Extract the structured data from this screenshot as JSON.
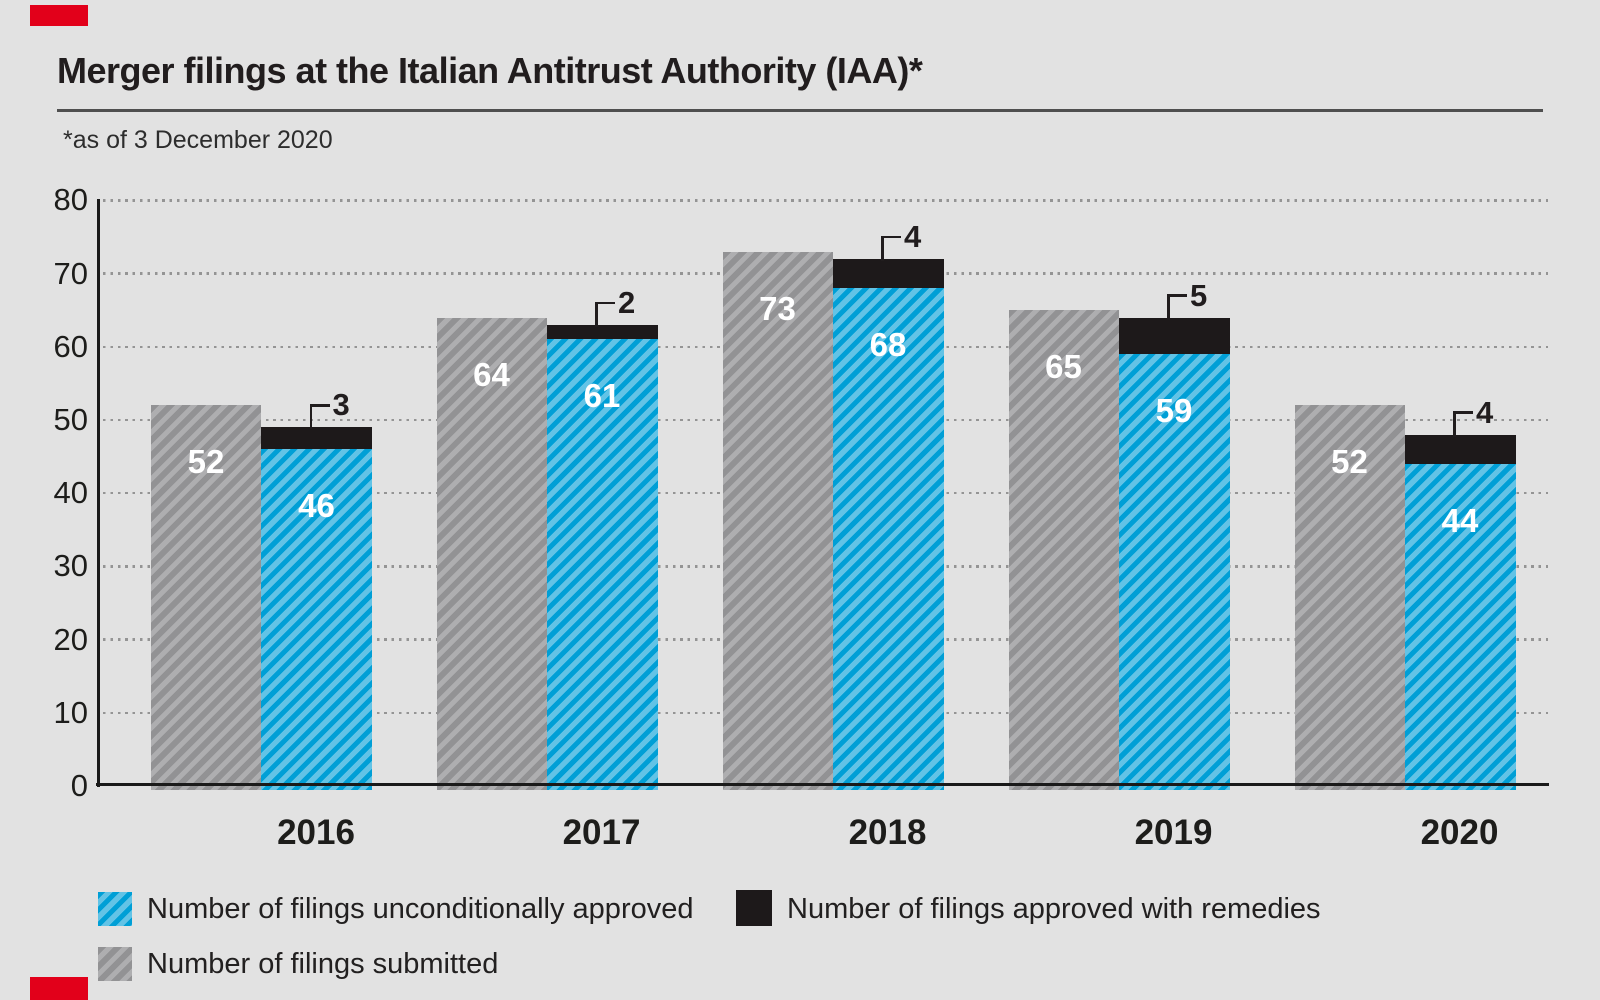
{
  "header": {
    "title": "Merger filings at the Italian Antitrust Authority (IAA)*",
    "footnote": "*as of 3 December 2020"
  },
  "chart_data": {
    "type": "bar",
    "title": "Merger filings at the Italian Antitrust Authority (IAA)*",
    "footnote": "*as of 3 December 2020",
    "categories": [
      "2016",
      "2017",
      "2018",
      "2019",
      "2020"
    ],
    "series": [
      {
        "name": "Number of filings submitted",
        "role": "submitted",
        "pattern": "gray-diagonal-hatch",
        "values": [
          52,
          64,
          73,
          65,
          52
        ]
      },
      {
        "name": "Number of filings unconditionally approved",
        "role": "unconditionally_approved",
        "pattern": "blue-diagonal-hatch",
        "values": [
          46,
          61,
          68,
          59,
          44
        ]
      },
      {
        "name": "Number of filings approved with remedies",
        "role": "approved_with_remedies",
        "pattern": "black-solid",
        "stacked_on": "unconditionally_approved",
        "label_style": "callout",
        "values": [
          3,
          2,
          4,
          5,
          4
        ]
      }
    ],
    "ylim": [
      0,
      80
    ],
    "yticks": [
      0,
      10,
      20,
      30,
      40,
      50,
      60,
      70,
      80
    ],
    "grid": "dotted-horizontal",
    "legend_position": "bottom-left"
  },
  "legend": {
    "items": [
      {
        "label": "Number of filings unconditionally approved",
        "swatch": "blue-hatch"
      },
      {
        "label": "Number of filings approved with remedies",
        "swatch": "black-solid"
      },
      {
        "label": "Number of filings submitted",
        "swatch": "gray-hatch"
      }
    ]
  },
  "colors": {
    "background": "#e2e2e2",
    "blue_light": "#62c3e6",
    "blue_dark": "#009fd6",
    "gray_base": "#929294",
    "gray_stripe": "#aeaeb0",
    "black_segment": "#1d191a",
    "grid_dot": "#949494",
    "axis": "#1a1a1a",
    "red_mark": "#e2001a",
    "value_label_text": "#ffffff"
  }
}
